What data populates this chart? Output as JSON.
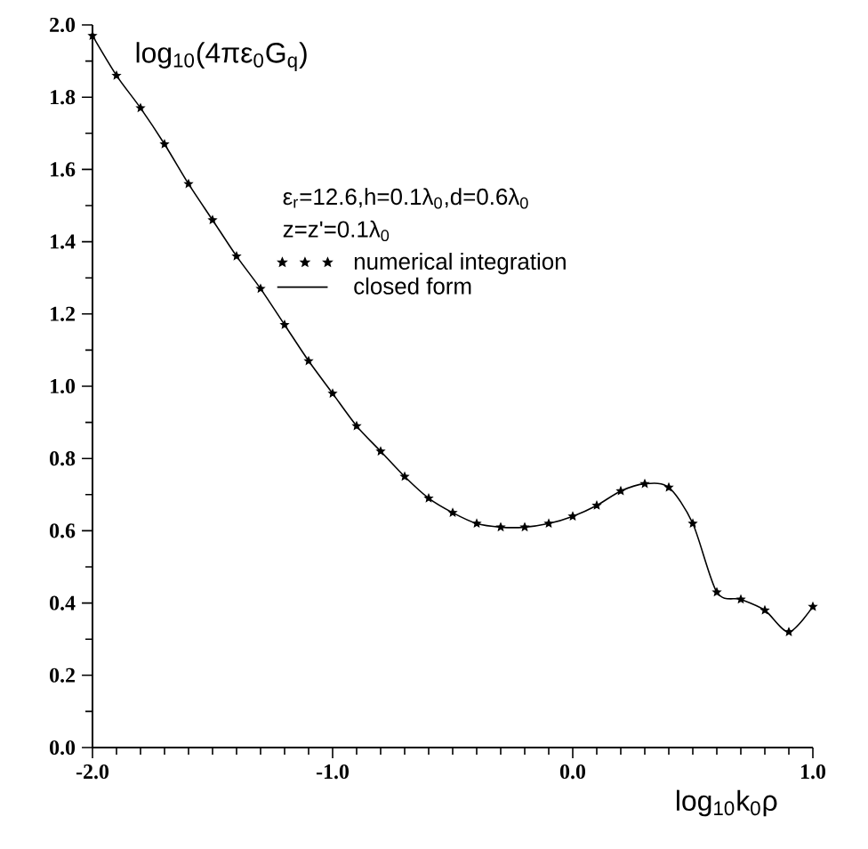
{
  "chart_data": {
    "type": "line",
    "ylabel": "log$_{10}$(4πε$_{0}$G$_{q}$)",
    "xlabel": "log$_{10}$k$_{0}$ρ",
    "annotations": [
      "ε$_{r}$=12.6,h=0.1λ$_{0}$,d=0.6λ$_{0}$",
      "z=z'=0.1λ$_{0}$"
    ],
    "x": [
      -2.0,
      -1.9,
      -1.8,
      -1.7,
      -1.6,
      -1.5,
      -1.4,
      -1.3,
      -1.2,
      -1.1,
      -1.0,
      -0.9,
      -0.8,
      -0.7,
      -0.6,
      -0.5,
      -0.4,
      -0.3,
      -0.2,
      -0.1,
      0.0,
      0.1,
      0.2,
      0.3,
      0.4,
      0.5,
      0.6,
      0.7,
      0.8,
      0.9,
      1.0
    ],
    "series": [
      {
        "name": "numerical integration",
        "type": "scatter",
        "marker": "star",
        "color": "#000000",
        "values": [
          1.97,
          1.86,
          1.77,
          1.67,
          1.56,
          1.46,
          1.36,
          1.27,
          1.17,
          1.07,
          0.98,
          0.89,
          0.82,
          0.75,
          0.69,
          0.65,
          0.62,
          0.61,
          0.61,
          0.62,
          0.64,
          0.67,
          0.71,
          0.73,
          0.72,
          0.62,
          0.43,
          0.41,
          0.38,
          0.32,
          0.39
        ]
      },
      {
        "name": "closed form",
        "line_style": "solid",
        "color": "#000000",
        "values": [
          1.97,
          1.86,
          1.77,
          1.67,
          1.56,
          1.46,
          1.36,
          1.27,
          1.17,
          1.07,
          0.98,
          0.89,
          0.82,
          0.75,
          0.69,
          0.65,
          0.62,
          0.61,
          0.61,
          0.62,
          0.64,
          0.67,
          0.71,
          0.73,
          0.72,
          0.62,
          0.43,
          0.41,
          0.38,
          0.32,
          0.39
        ]
      }
    ],
    "xlim": [
      -2,
      1
    ],
    "ylim": [
      0,
      2
    ],
    "xticks": [
      {
        "value": -2,
        "label": "-2.0"
      },
      {
        "value": -1,
        "label": "-1.0"
      },
      {
        "value": 0,
        "label": "0.0"
      },
      {
        "value": 1,
        "label": "1.0"
      }
    ],
    "yticks": [
      {
        "value": 0,
        "label": "0.0"
      },
      {
        "value": 0.2,
        "label": "0.2"
      },
      {
        "value": 0.4,
        "label": "0.4"
      },
      {
        "value": 0.6,
        "label": "0.6"
      },
      {
        "value": 0.8,
        "label": "0.8"
      },
      {
        "value": 1.0,
        "label": "1.0"
      },
      {
        "value": 1.2,
        "label": "1.2"
      },
      {
        "value": 1.4,
        "label": "1.4"
      },
      {
        "value": 1.6,
        "label": "1.6"
      },
      {
        "value": 1.8,
        "label": "1.8"
      },
      {
        "value": 2.0,
        "label": "2.0"
      }
    ],
    "grid": false,
    "legend": "top"
  }
}
